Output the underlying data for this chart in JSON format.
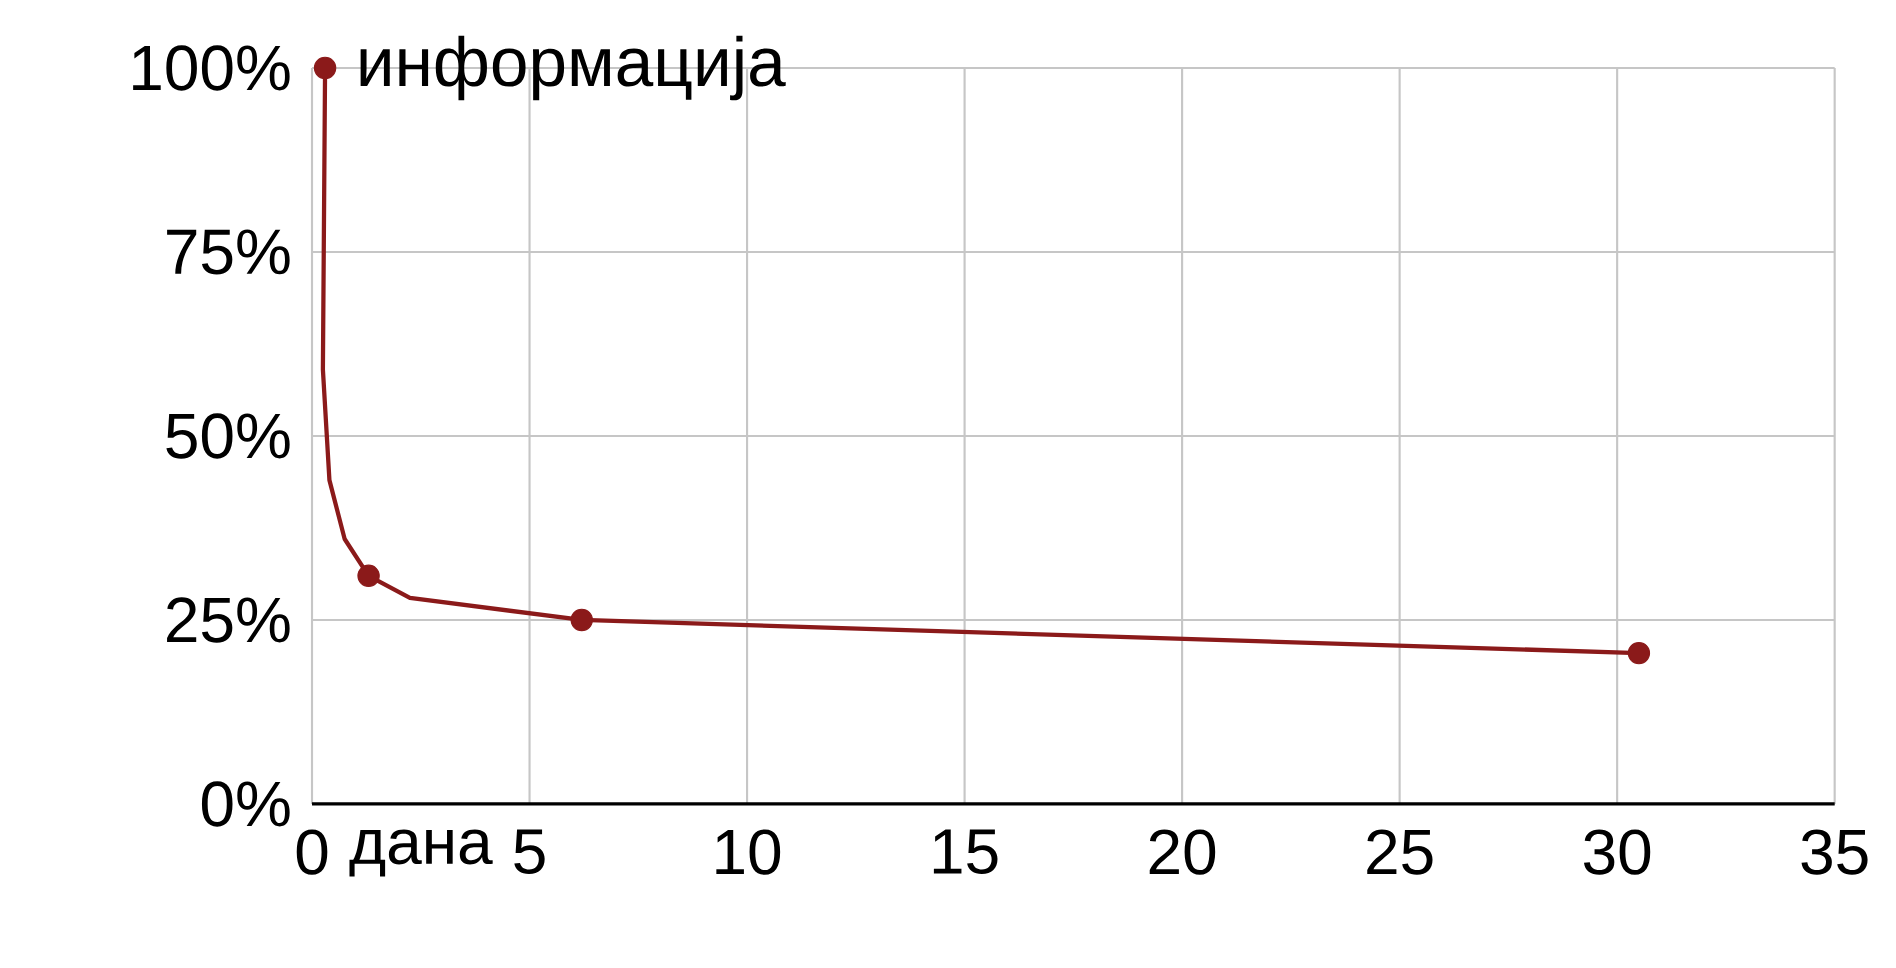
{
  "chart_data": {
    "type": "line",
    "xlabel": "дана",
    "annotations": [
      {
        "text": "информација",
        "x": 0.3,
        "y": 100
      }
    ],
    "xlim": [
      0,
      35
    ],
    "xticks": [
      0,
      5,
      10,
      15,
      20,
      25,
      30,
      35
    ],
    "ylim": [
      0,
      100
    ],
    "yticks": [
      {
        "value": 0,
        "label": "0%"
      },
      {
        "value": 25,
        "label": "25%"
      },
      {
        "value": 50,
        "label": "50%"
      },
      {
        "value": 75,
        "label": "75%"
      },
      {
        "value": 100,
        "label": "100%"
      }
    ],
    "grid": true,
    "series": [
      {
        "marker": "none",
        "color": "#8b1a1a",
        "x": [
          0.3,
          0.25,
          0.4,
          0.75,
          1.3,
          2.25,
          6.2,
          30.5
        ],
        "values": [
          100,
          59,
          44,
          36,
          31,
          28,
          25,
          20.5
        ]
      },
      {
        "type": "scatter",
        "marker": "circle",
        "color": "#8b1a1a",
        "x": [
          0.3,
          1.3,
          6.2,
          30.5
        ],
        "values": [
          100,
          31,
          25,
          20.5
        ]
      }
    ]
  }
}
